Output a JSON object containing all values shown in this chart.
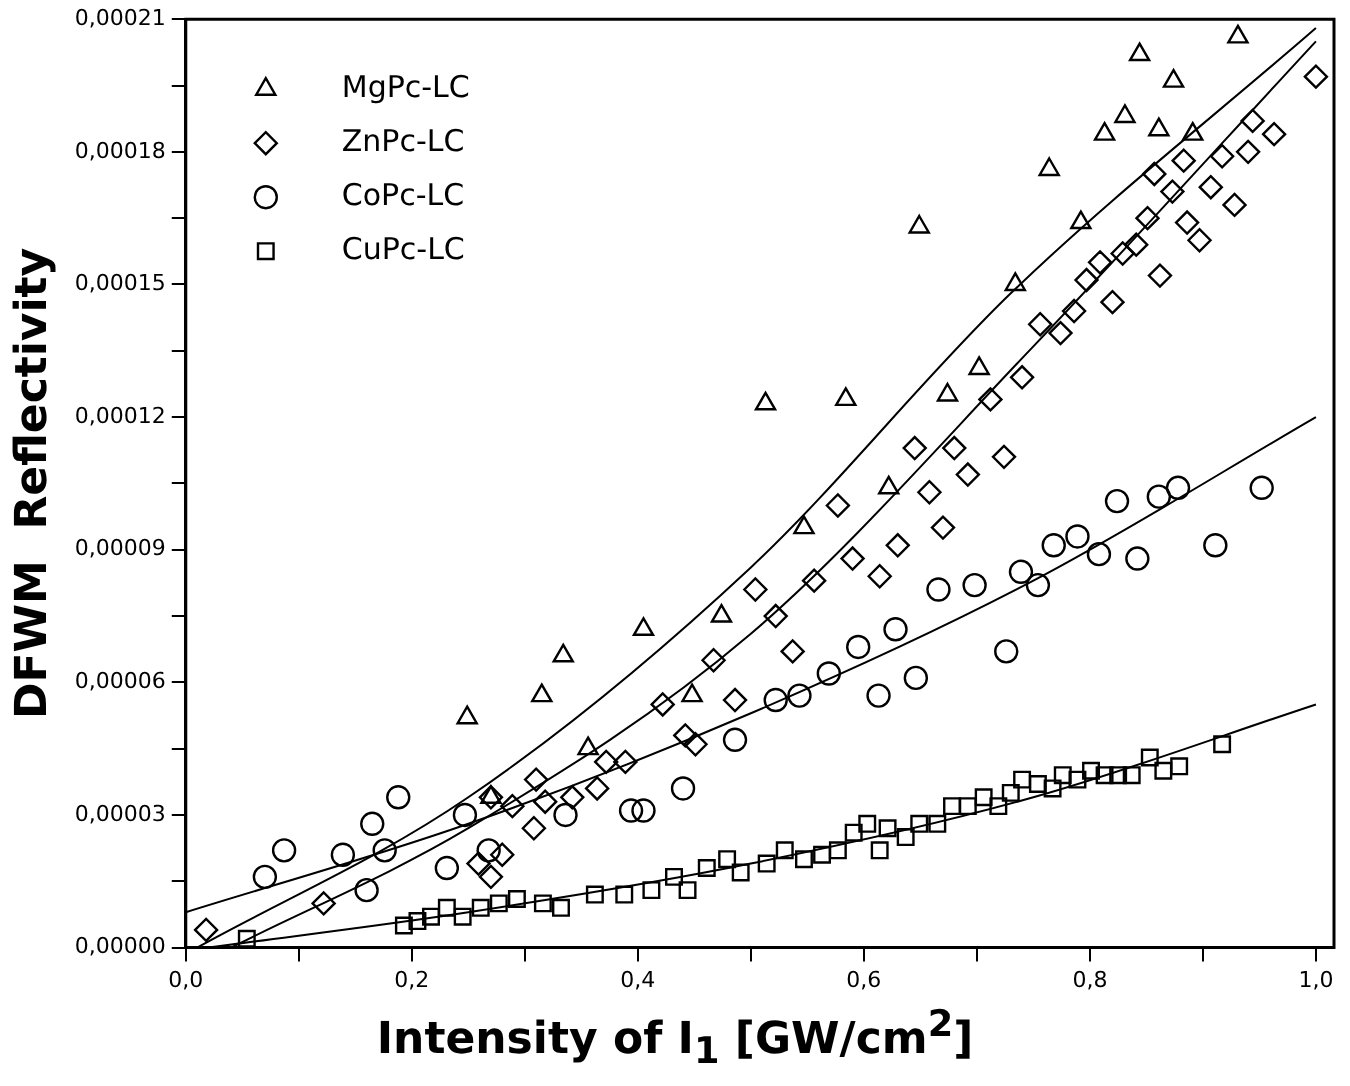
{
  "chart_data": {
    "type": "scatter",
    "xlabel": "Intensity of I$_{1}$ [GW/cm$^{2}$]",
    "ylabel": "DFWM  Reflectivity",
    "xlim": [
      0,
      1.016
    ],
    "ylim": [
      0,
      0.00021
    ],
    "xticks": [
      {
        "value": 0,
        "label": "0,0"
      },
      {
        "value": 0.1,
        "label": null
      },
      {
        "value": 0.2,
        "label": "0,2"
      },
      {
        "value": 0.3,
        "label": null
      },
      {
        "value": 0.4,
        "label": "0,4"
      },
      {
        "value": 0.5,
        "label": null
      },
      {
        "value": 0.6,
        "label": "0,6"
      },
      {
        "value": 0.7,
        "label": null
      },
      {
        "value": 0.8,
        "label": "0,8"
      },
      {
        "value": 0.9,
        "label": null
      },
      {
        "value": 1.0,
        "label": "1,0"
      }
    ],
    "yticks": [
      {
        "value": 0,
        "label": "0,00000"
      },
      {
        "value": 1.5e-05,
        "label": null
      },
      {
        "value": 3e-05,
        "label": "0,00003"
      },
      {
        "value": 4.5e-05,
        "label": null
      },
      {
        "value": 6e-05,
        "label": "0,00006"
      },
      {
        "value": 7.5e-05,
        "label": null
      },
      {
        "value": 9e-05,
        "label": "0,00009"
      },
      {
        "value": 0.000105,
        "label": null
      },
      {
        "value": 0.00012,
        "label": "0,00012"
      },
      {
        "value": 0.000135,
        "label": null
      },
      {
        "value": 0.00015,
        "label": "0,00015"
      },
      {
        "value": 0.000165,
        "label": null
      },
      {
        "value": 0.00018,
        "label": "0,00018"
      },
      {
        "value": 0.000195,
        "label": null
      },
      {
        "value": 0.00021,
        "label": "0,00021"
      }
    ],
    "grid": false,
    "legend": "top left",
    "series": [
      {
        "name": "MgPc-LC",
        "color": "#000000",
        "marker": "triangle",
        "x": [
          0.249,
          0.27,
          0.315,
          0.334,
          0.356,
          0.405,
          0.448,
          0.474,
          0.513,
          0.547,
          0.584,
          0.622,
          0.649,
          0.674,
          0.702,
          0.734,
          0.764,
          0.792,
          0.813,
          0.831,
          0.844,
          0.861,
          0.874,
          0.891,
          0.931
        ],
        "values": [
          5.2e-05,
          3.4e-05,
          5.7e-05,
          6.6e-05,
          4.5e-05,
          7.2e-05,
          5.7e-05,
          7.5e-05,
          0.000123,
          9.5e-05,
          0.000124,
          0.000104,
          0.000163,
          0.000125,
          0.000131,
          0.00015,
          0.000176,
          0.000164,
          0.000184,
          0.000188,
          0.000202,
          0.000185,
          0.000196,
          0.000184,
          0.000206
        ]
      },
      {
        "name": "ZnPc-LC",
        "color": "#000000",
        "marker": "diamond",
        "x": [
          0.018,
          0.122,
          0.259,
          0.27,
          0.28,
          0.27,
          0.289,
          0.31,
          0.308,
          0.318,
          0.342,
          0.364,
          0.372,
          0.389,
          0.422,
          0.442,
          0.451,
          0.467,
          0.486,
          0.504,
          0.522,
          0.537,
          0.556,
          0.577,
          0.59,
          0.614,
          0.63,
          0.645,
          0.658,
          0.67,
          0.68,
          0.692,
          0.712,
          0.724,
          0.74,
          0.756,
          0.774,
          0.786,
          0.797,
          0.809,
          0.82,
          0.829,
          0.841,
          0.851,
          0.862,
          0.857,
          0.873,
          0.883,
          0.886,
          0.897,
          0.907,
          0.917,
          0.928,
          0.94,
          0.944,
          0.963,
          1.0
        ],
        "values": [
          4e-06,
          1e-05,
          1.9e-05,
          1.6e-05,
          2.1e-05,
          3.4e-05,
          3.2e-05,
          3.8e-05,
          2.7e-05,
          3.3e-05,
          3.4e-05,
          3.6e-05,
          4.2e-05,
          4.2e-05,
          5.5e-05,
          4.8e-05,
          4.6e-05,
          6.5e-05,
          5.6e-05,
          8.1e-05,
          7.5e-05,
          6.7e-05,
          8.3e-05,
          0.0001,
          8.8e-05,
          8.4e-05,
          9.1e-05,
          0.000113,
          0.000103,
          9.5e-05,
          0.000113,
          0.000107,
          0.000124,
          0.000111,
          0.000129,
          0.000141,
          0.000139,
          0.000144,
          0.000151,
          0.000155,
          0.000146,
          0.000157,
          0.000159,
          0.000165,
          0.000152,
          0.000175,
          0.000171,
          0.000178,
          0.000164,
          0.00016,
          0.000172,
          0.000179,
          0.000168,
          0.00018,
          0.000187,
          0.000184,
          0.000197
        ]
      },
      {
        "name": "CoPc-LC",
        "color": "#000000",
        "marker": "circle",
        "x": [
          0.07,
          0.087,
          0.139,
          0.165,
          0.176,
          0.16,
          0.188,
          0.231,
          0.247,
          0.268,
          0.336,
          0.394,
          0.405,
          0.44,
          0.486,
          0.522,
          0.543,
          0.569,
          0.595,
          0.613,
          0.628,
          0.646,
          0.666,
          0.698,
          0.726,
          0.739,
          0.754,
          0.768,
          0.789,
          0.808,
          0.824,
          0.842,
          0.861,
          0.878,
          0.911,
          0.952
        ],
        "values": [
          1.6e-05,
          2.2e-05,
          2.1e-05,
          2.8e-05,
          2.2e-05,
          1.3e-05,
          3.4e-05,
          1.8e-05,
          3e-05,
          2.2e-05,
          3e-05,
          3.1e-05,
          3.1e-05,
          3.6e-05,
          4.7e-05,
          5.6e-05,
          5.7e-05,
          6.2e-05,
          6.8e-05,
          5.7e-05,
          7.2e-05,
          6.1e-05,
          8.1e-05,
          8.2e-05,
          6.7e-05,
          8.5e-05,
          8.2e-05,
          9.1e-05,
          9.3e-05,
          8.9e-05,
          0.000101,
          8.8e-05,
          0.000102,
          0.000104,
          9.1e-05,
          0.000104
        ]
      },
      {
        "name": "CuPc-LC",
        "color": "#000000",
        "marker": "square",
        "x": [
          0.054,
          0.193,
          0.205,
          0.217,
          0.231,
          0.245,
          0.261,
          0.277,
          0.293,
          0.316,
          0.332,
          0.362,
          0.388,
          0.412,
          0.432,
          0.444,
          0.461,
          0.479,
          0.491,
          0.514,
          0.53,
          0.547,
          0.563,
          0.577,
          0.591,
          0.603,
          0.614,
          0.621,
          0.637,
          0.649,
          0.665,
          0.678,
          0.692,
          0.706,
          0.719,
          0.73,
          0.74,
          0.754,
          0.767,
          0.776,
          0.789,
          0.801,
          0.813,
          0.825,
          0.837,
          0.853,
          0.865,
          0.879,
          0.917
        ],
        "values": [
          2e-06,
          5e-06,
          6e-06,
          7e-06,
          9e-06,
          7e-06,
          9e-06,
          1e-05,
          1.1e-05,
          1e-05,
          9e-06,
          1.2e-05,
          1.2e-05,
          1.3e-05,
          1.6e-05,
          1.3e-05,
          1.8e-05,
          2e-05,
          1.7e-05,
          1.9e-05,
          2.2e-05,
          2e-05,
          2.1e-05,
          2.2e-05,
          2.6e-05,
          2.8e-05,
          2.2e-05,
          2.7e-05,
          2.5e-05,
          2.8e-05,
          2.8e-05,
          3.2e-05,
          3.2e-05,
          3.4e-05,
          3.2e-05,
          3.5e-05,
          3.8e-05,
          3.7e-05,
          3.6e-05,
          3.9e-05,
          3.8e-05,
          4e-05,
          3.9e-05,
          3.9e-05,
          3.9e-05,
          4.3e-05,
          4e-05,
          4.1e-05,
          4.6e-05
        ]
      },
      {
        "type": "line",
        "color": "#000000",
        "marker": "none",
        "x": [
          0.01,
          0.25,
          0.5,
          0.73,
          1.0
        ],
        "values": [
          0,
          3.4e-05,
          8.6e-05,
          0.000148,
          0.000208
        ]
      },
      {
        "type": "line",
        "color": "#000000",
        "marker": "none",
        "x": [
          0.04,
          0.25,
          0.5,
          0.75,
          1.0
        ],
        "values": [
          0,
          2.7e-05,
          7.1e-05,
          0.000136,
          0.000205
        ]
      },
      {
        "type": "line",
        "color": "#000000",
        "marker": "none",
        "x": [
          0,
          0.25,
          0.5,
          0.75,
          1.0
        ],
        "values": [
          8e-06,
          2.8e-05,
          5.3e-05,
          8.3e-05,
          0.00012
        ]
      },
      {
        "type": "line",
        "color": "#000000",
        "marker": "none",
        "x": [
          0.02,
          0.25,
          0.5,
          0.75,
          1.0
        ],
        "values": [
          0,
          8e-06,
          1.9e-05,
          3.4e-05,
          5.5e-05
        ]
      }
    ]
  }
}
